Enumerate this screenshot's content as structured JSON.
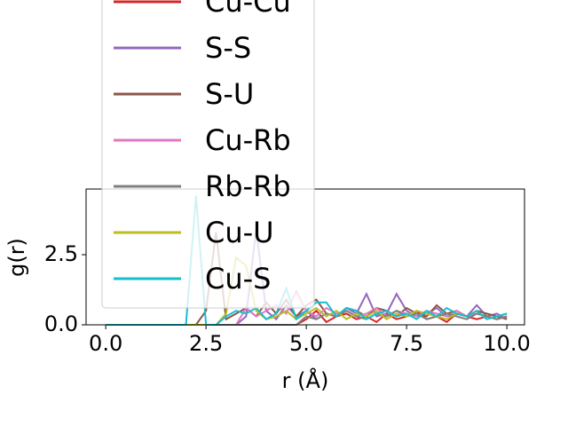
{
  "chart_data": {
    "type": "line",
    "x_label": "r (Å)",
    "y_label": "g(r)",
    "x": [
      0,
      0.25,
      0.5,
      0.75,
      1,
      1.25,
      1.5,
      1.75,
      2,
      2.25,
      2.5,
      2.75,
      3,
      3.25,
      3.5,
      3.75,
      4,
      4.25,
      4.5,
      4.75,
      5,
      5.25,
      5.5,
      5.75,
      6,
      6.25,
      6.5,
      6.75,
      7,
      7.25,
      7.5,
      7.75,
      8,
      8.25,
      8.5,
      8.75,
      9,
      9.25,
      9.5,
      9.75,
      10
    ],
    "series": [
      {
        "name": "Cu-Cu",
        "color": "#d62728",
        "values": [
          0,
          0,
          0,
          0,
          0,
          0,
          0,
          0,
          0,
          0,
          0,
          0,
          0,
          0,
          0,
          0,
          0,
          0,
          0,
          0,
          0.2,
          0.5,
          0.1,
          0.3,
          0.4,
          0.2,
          0.3,
          0.1,
          0.4,
          0.2,
          0.3,
          0.5,
          0.2,
          0.3,
          0.1,
          0.4,
          0.3,
          0.2,
          0.3,
          0.2,
          0.3
        ]
      },
      {
        "name": "S-S",
        "color": "#9467bd",
        "values": [
          0,
          0,
          0,
          0,
          0,
          0,
          0,
          0,
          0,
          0,
          0,
          0,
          0,
          0,
          0.3,
          3.4,
          0.5,
          0.2,
          0.7,
          0.3,
          0.5,
          0.2,
          0.4,
          0.3,
          0.6,
          0.4,
          1.1,
          0.3,
          0.4,
          1.1,
          0.5,
          0.3,
          0.4,
          0.6,
          0.3,
          0.4,
          0.3,
          0.7,
          0.3,
          0.4,
          0.2
        ]
      },
      {
        "name": "S-U",
        "color": "#8c564b",
        "values": [
          0,
          0,
          0,
          0,
          0,
          0,
          0,
          0,
          0,
          0,
          0.5,
          3.3,
          0.2,
          0.4,
          0.6,
          0.3,
          0.8,
          0.4,
          0.9,
          0.3,
          0.7,
          0.9,
          0.4,
          0.3,
          0.6,
          0.5,
          0.3,
          0.6,
          0.5,
          0.3,
          0.6,
          0.4,
          0.3,
          0.7,
          0.4,
          0.5,
          0.3,
          0.5,
          0.4,
          0.3,
          0.2
        ]
      },
      {
        "name": "Cu-Rb",
        "color": "#e377c2",
        "values": [
          0,
          0,
          0,
          0,
          0,
          0,
          0,
          0,
          0,
          0,
          0,
          0,
          0,
          0,
          0.6,
          0.3,
          0.5,
          0.7,
          0.4,
          1.2,
          0.5,
          0.3,
          0.6,
          0.4,
          0.5,
          0.3,
          0.4,
          0.6,
          0.3,
          0.5,
          0.4,
          0.3,
          0.5,
          0.4,
          0.3,
          0.5,
          0.3,
          0.4,
          0.3,
          0.2,
          0.3
        ]
      },
      {
        "name": "Rb-Rb",
        "color": "#7f7f7f",
        "values": [
          0,
          0,
          0,
          0,
          0,
          0,
          0,
          0,
          0,
          0,
          0,
          0,
          0,
          0,
          0,
          0,
          0,
          0,
          0,
          0,
          0.3,
          0.2,
          0.4,
          0.3,
          0.5,
          0.3,
          0.2,
          0.4,
          0.3,
          0.5,
          0.3,
          0.4,
          0.2,
          0.3,
          0.4,
          0.3,
          0.2,
          0.4,
          0.3,
          0.2,
          0.3
        ]
      },
      {
        "name": "Cu-U",
        "color": "#bcbd22",
        "values": [
          0,
          0,
          0,
          0,
          0,
          0,
          0,
          0,
          0,
          0,
          0,
          0,
          0.4,
          2.4,
          2.1,
          0.5,
          0.2,
          0.3,
          0.5,
          0.2,
          0.4,
          0.6,
          0.3,
          0.5,
          0.2,
          0.4,
          0.3,
          0.5,
          0.2,
          0.4,
          0.3,
          0.5,
          0.4,
          0.3,
          0.2,
          0.4,
          0.3,
          0.5,
          0.2,
          0.3,
          0.4
        ]
      },
      {
        "name": "Cu-S",
        "color": "#17becf",
        "values": [
          0,
          0,
          0,
          0,
          0,
          0,
          0,
          0,
          0,
          4.6,
          0,
          0,
          0.3,
          0.5,
          0.4,
          0.6,
          0.2,
          0.4,
          1.3,
          0.2,
          0.5,
          0.8,
          0.8,
          0.3,
          0.6,
          0.5,
          0.2,
          0.4,
          0.5,
          0.3,
          0.4,
          0.2,
          0.5,
          0.3,
          0.6,
          0.4,
          0.3,
          0.5,
          0.2,
          0.3,
          0.4
        ]
      }
    ],
    "xlim": [
      -0.49,
      10.44
    ],
    "ylim": [
      0,
      4.84
    ],
    "xticks": [
      {
        "value": 0,
        "label": "0.0"
      },
      {
        "value": 2.5,
        "label": "2.5"
      },
      {
        "value": 5,
        "label": "5.0"
      },
      {
        "value": 7.5,
        "label": "7.5"
      },
      {
        "value": 10,
        "label": "10.0"
      }
    ],
    "yticks": [
      {
        "value": 0,
        "label": "0.0"
      },
      2.5
    ],
    "legend": "upper left"
  }
}
